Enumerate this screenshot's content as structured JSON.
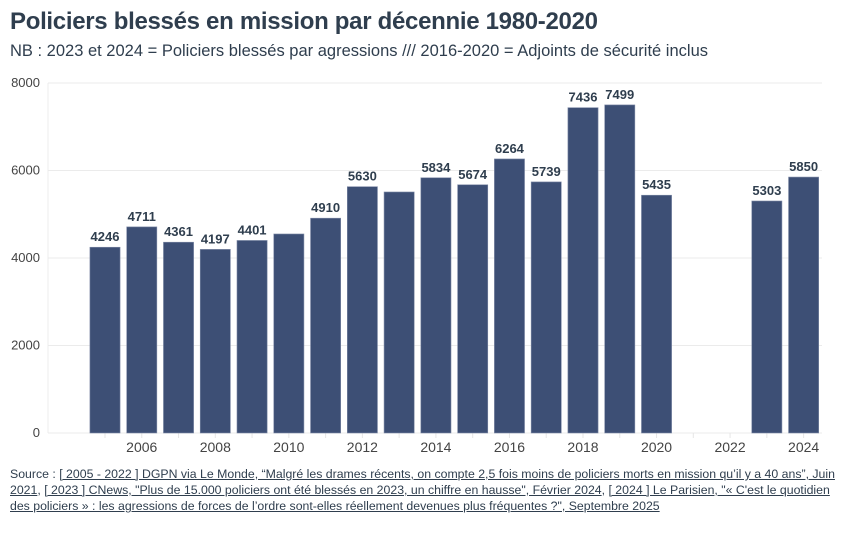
{
  "header": {
    "title": "Policiers blessés en mission par décennie 1980-2020",
    "subtitle": "NB : 2023 et 2024 = Policiers blessés par agressions /// 2016-2020 = Adjoints de sécurité inclus"
  },
  "chart_data": {
    "type": "bar",
    "title": "Policiers blessés en mission par décennie 1980-2020",
    "subtitle": "NB : 2023 et 2024 = Policiers blessés par agressions /// 2016-2020 = Adjoints de sécurité inclus",
    "xlabel": "",
    "ylabel": "",
    "categories": [
      2005,
      2006,
      2007,
      2008,
      2009,
      2010,
      2011,
      2012,
      2013,
      2014,
      2015,
      2016,
      2017,
      2018,
      2019,
      2020,
      2021,
      2022,
      2023,
      2024
    ],
    "values": [
      4246,
      4711,
      4361,
      4197,
      4401,
      4549,
      4910,
      5630,
      5509,
      5834,
      5674,
      6264,
      5739,
      7436,
      7499,
      5435,
      null,
      null,
      5303,
      5850
    ],
    "labels": [
      "4246",
      "4711",
      "4361",
      "4197",
      "4401",
      "",
      "4910",
      "5630",
      "",
      "5834",
      "5674",
      "6264",
      "5739",
      "7436",
      "7499",
      "5435",
      "",
      "",
      "5303",
      "5850"
    ],
    "xticks": [
      "2006",
      "2008",
      "2010",
      "2012",
      "2014",
      "2016",
      "2018",
      "2020",
      "2022",
      "2024"
    ],
    "xtick_values": [
      2006,
      2008,
      2010,
      2012,
      2014,
      2016,
      2018,
      2020,
      2022,
      2024
    ],
    "yticks": [
      "0",
      "2000",
      "4000",
      "6000",
      "8000"
    ],
    "ytick_values": [
      0,
      2000,
      4000,
      6000,
      8000
    ],
    "ylim": [
      0,
      8000
    ],
    "xlim": [
      2003.45,
      2024.5
    ],
    "grid": true,
    "bar_color": "#3d4f75",
    "legend": "none"
  },
  "source": {
    "prefix": "Source : ",
    "parts": [
      {
        "text": "[ 2005 - 2022 ] DGPN via Le Monde, “Malgré les drames récents, on compte 2,5 fois moins de policiers morts en mission qu’il y a 40 ans”, Juin 2021",
        "link": true
      },
      {
        "text": ", ",
        "link": false
      },
      {
        "text": "[ 2023 ] CNews, \"Plus de 15.000 policiers ont été blessés en 2023, un chiffre en hausse\", Février 2024",
        "link": true
      },
      {
        "text": ", ",
        "link": false
      },
      {
        "text": "[ 2024 ] Le Parisien, \"« C'est le quotidien des policiers » : les agressions de forces de l’ordre sont-elles réellement devenues plus fréquentes ?\", Septembre 2025",
        "link": true
      }
    ]
  }
}
